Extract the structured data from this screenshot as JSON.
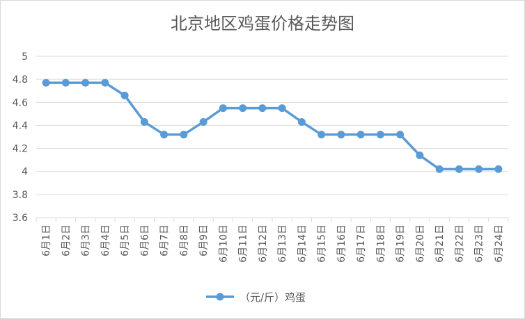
{
  "chart_data": {
    "type": "line",
    "title": "北京地区鸡蛋价格走势图",
    "categories": [
      "6月1日",
      "6月2日",
      "6月3日",
      "6月4日",
      "6月5日",
      "6月6日",
      "6月7日",
      "6月8日",
      "6月9日",
      "6月10日",
      "6月11日",
      "6月12日",
      "6月13日",
      "6月14日",
      "6月15日",
      "6月16日",
      "6月17日",
      "6月18日",
      "6月19日",
      "6月20日",
      "6月21日",
      "6月22日",
      "6月23日",
      "6月24日"
    ],
    "series": [
      {
        "name": "（元/斤）鸡蛋",
        "color": "#5b9bd5",
        "values": [
          4.77,
          4.77,
          4.77,
          4.77,
          4.66,
          4.43,
          4.32,
          4.32,
          4.43,
          4.55,
          4.55,
          4.55,
          4.55,
          4.43,
          4.32,
          4.32,
          4.32,
          4.32,
          4.32,
          4.14,
          4.02,
          4.02,
          4.02,
          4.02
        ]
      }
    ],
    "ylim": [
      3.6,
      5
    ],
    "yticks": [
      "3.6",
      "3.8",
      "4",
      "4.2",
      "4.4",
      "4.6",
      "4.8",
      "5"
    ],
    "grid": true,
    "legend_position": "bottom"
  }
}
